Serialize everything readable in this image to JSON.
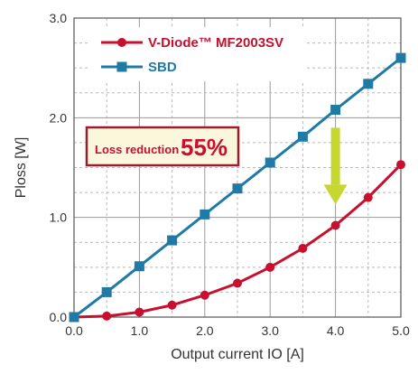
{
  "chart_data": {
    "type": "line",
    "xlabel": "Output current IO [A]",
    "ylabel": "Ploss [W]",
    "xlim": [
      0,
      5
    ],
    "ylim": [
      0,
      3
    ],
    "x_ticks": [
      "0.0",
      "1.0",
      "2.0",
      "3.0",
      "4.0",
      "5.0"
    ],
    "y_ticks": [
      "0.0",
      "1.0",
      "2.0",
      "3.0"
    ],
    "grid": true,
    "legend_position": "top-left",
    "x": [
      0,
      0.5,
      1.0,
      1.5,
      2.0,
      2.5,
      3.0,
      3.5,
      4.0,
      4.5,
      5.0
    ],
    "series": [
      {
        "name": "V-Diode™ MF2003SV",
        "color": "#c8102e",
        "marker": "circle",
        "values": [
          0.0,
          0.01,
          0.05,
          0.12,
          0.22,
          0.34,
          0.5,
          0.69,
          0.92,
          1.2,
          1.53
        ]
      },
      {
        "name": "SBD",
        "color": "#1f7aa6",
        "marker": "square",
        "values": [
          0.0,
          0.25,
          0.51,
          0.77,
          1.03,
          1.29,
          1.55,
          1.81,
          2.08,
          2.34,
          2.6
        ]
      }
    ],
    "annotation": {
      "label": "Loss reduction",
      "value": "55%",
      "arrow_color": "#c8d630",
      "arrow_from": [
        4.0,
        1.9
      ],
      "arrow_to": [
        4.0,
        1.13
      ]
    }
  }
}
